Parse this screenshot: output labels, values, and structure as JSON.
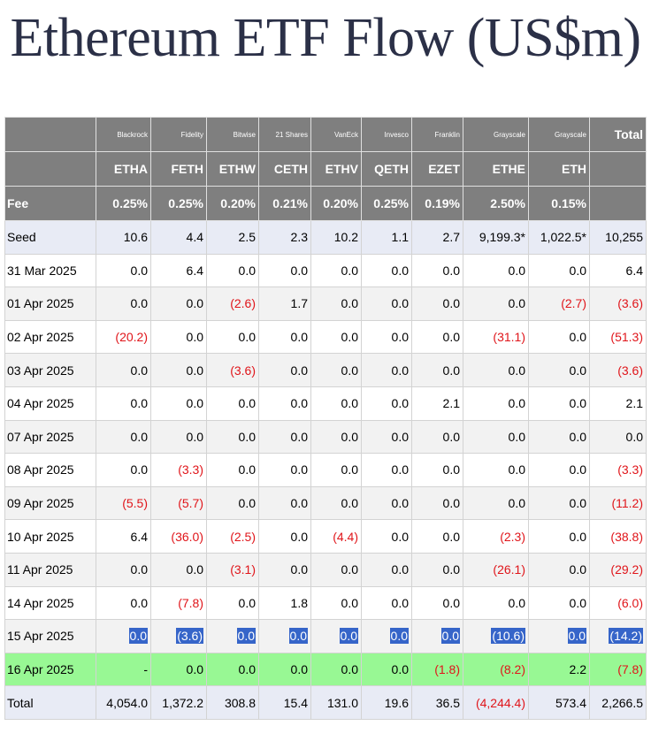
{
  "title": "Ethereum ETF Flow (US$m)",
  "header": {
    "issuers": [
      "Blackrock",
      "Fidelity",
      "Bitwise",
      "21 Shares",
      "VanEck",
      "Invesco",
      "Franklin",
      "Grayscale",
      "Grayscale"
    ],
    "total_label": "Total",
    "tickers": [
      "ETHA",
      "FETH",
      "ETHW",
      "CETH",
      "ETHV",
      "QETH",
      "EZET",
      "ETHE",
      "ETH"
    ],
    "fee_label": "Fee",
    "fees": [
      "0.25%",
      "0.25%",
      "0.20%",
      "0.21%",
      "0.20%",
      "0.25%",
      "0.19%",
      "2.50%",
      "0.15%"
    ]
  },
  "colors": {
    "header_bg": "#7f7f7f",
    "negative": "#e0151a",
    "highlight_row": "#98f894",
    "selection": "#3665c9"
  },
  "rows": [
    {
      "date": "Seed",
      "values": [
        "10.6",
        "4.4",
        "2.5",
        "2.3",
        "10.2",
        "1.1",
        "2.7",
        "9,199.3*",
        "1,022.5*",
        "10,255"
      ]
    },
    {
      "date": "31 Mar 2025",
      "values": [
        "0.0",
        "6.4",
        "0.0",
        "0.0",
        "0.0",
        "0.0",
        "0.0",
        "0.0",
        "0.0",
        "6.4"
      ]
    },
    {
      "date": "01 Apr 2025",
      "values": [
        "0.0",
        "0.0",
        "(2.6)",
        "1.7",
        "0.0",
        "0.0",
        "0.0",
        "0.0",
        "(2.7)",
        "(3.6)"
      ]
    },
    {
      "date": "02 Apr 2025",
      "values": [
        "(20.2)",
        "0.0",
        "0.0",
        "0.0",
        "0.0",
        "0.0",
        "0.0",
        "(31.1)",
        "0.0",
        "(51.3)"
      ]
    },
    {
      "date": "03 Apr 2025",
      "values": [
        "0.0",
        "0.0",
        "(3.6)",
        "0.0",
        "0.0",
        "0.0",
        "0.0",
        "0.0",
        "0.0",
        "(3.6)"
      ]
    },
    {
      "date": "04 Apr 2025",
      "values": [
        "0.0",
        "0.0",
        "0.0",
        "0.0",
        "0.0",
        "0.0",
        "2.1",
        "0.0",
        "0.0",
        "2.1"
      ]
    },
    {
      "date": "07 Apr 2025",
      "values": [
        "0.0",
        "0.0",
        "0.0",
        "0.0",
        "0.0",
        "0.0",
        "0.0",
        "0.0",
        "0.0",
        "0.0"
      ]
    },
    {
      "date": "08 Apr 2025",
      "values": [
        "0.0",
        "(3.3)",
        "0.0",
        "0.0",
        "0.0",
        "0.0",
        "0.0",
        "0.0",
        "0.0",
        "(3.3)"
      ]
    },
    {
      "date": "09 Apr 2025",
      "values": [
        "(5.5)",
        "(5.7)",
        "0.0",
        "0.0",
        "0.0",
        "0.0",
        "0.0",
        "0.0",
        "0.0",
        "(11.2)"
      ]
    },
    {
      "date": "10 Apr 2025",
      "values": [
        "6.4",
        "(36.0)",
        "(2.5)",
        "0.0",
        "(4.4)",
        "0.0",
        "0.0",
        "(2.3)",
        "0.0",
        "(38.8)"
      ]
    },
    {
      "date": "11 Apr 2025",
      "values": [
        "0.0",
        "0.0",
        "(3.1)",
        "0.0",
        "0.0",
        "0.0",
        "0.0",
        "(26.1)",
        "0.0",
        "(29.2)"
      ]
    },
    {
      "date": "14 Apr 2025",
      "values": [
        "0.0",
        "(7.8)",
        "0.0",
        "1.8",
        "0.0",
        "0.0",
        "0.0",
        "0.0",
        "0.0",
        "(6.0)"
      ]
    },
    {
      "date": "15 Apr 2025",
      "values": [
        "0.0",
        "(3.6)",
        "0.0",
        "0.0",
        "0.0",
        "0.0",
        "0.0",
        "(10.6)",
        "0.0",
        "(14.2)"
      ]
    },
    {
      "date": "16 Apr 2025",
      "values": [
        "-",
        "0.0",
        "0.0",
        "0.0",
        "0.0",
        "0.0",
        "(1.8)",
        "(8.2)",
        "2.2",
        "(7.8)"
      ]
    },
    {
      "date": "Total",
      "values": [
        "4,054.0",
        "1,372.2",
        "308.8",
        "15.4",
        "131.0",
        "19.6",
        "36.5",
        "(4,244.4)",
        "573.4",
        "2,266.5"
      ]
    }
  ]
}
